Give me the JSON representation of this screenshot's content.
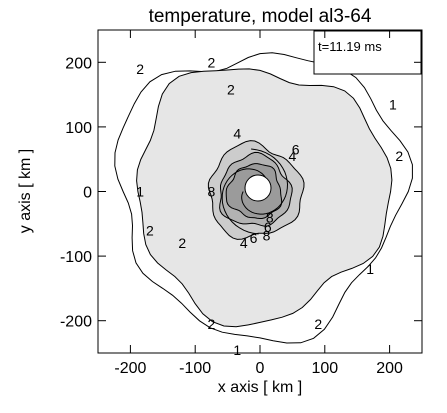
{
  "chart_data": {
    "type": "contour",
    "title": "temperature, model al3-64",
    "time_label": "t=11.19 ms",
    "xlabel": "x axis [ km ]",
    "ylabel": "y axis [ km ]",
    "xlim": [
      -250,
      250
    ],
    "ylim": [
      -250,
      250
    ],
    "xticks": [
      -200,
      -100,
      0,
      100,
      200
    ],
    "yticks": [
      -200,
      -100,
      0,
      100,
      200
    ],
    "grid": false,
    "contour_levels": [
      {
        "level": 1,
        "label": "1",
        "fill": "#ffffff",
        "radius": 220
      },
      {
        "level": 2,
        "label": "2",
        "fill": "#e6e6e6",
        "radius": 195
      },
      {
        "level": 4,
        "label": "4",
        "fill": "#cccccc",
        "radius": 72
      },
      {
        "level": 6,
        "label": "6",
        "fill": "#b2b2b2",
        "radius": 55
      },
      {
        "level": 8,
        "label": "8",
        "fill": "#9b9b9b",
        "radius": 42
      }
    ],
    "contour_labels": [
      {
        "text": "1",
        "x": -185,
        "y": 0
      },
      {
        "text": "1",
        "x": 170,
        "y": -120
      },
      {
        "text": "1",
        "x": 205,
        "y": 135
      },
      {
        "text": "1",
        "x": -35,
        "y": -245
      },
      {
        "text": "2",
        "x": -75,
        "y": 200
      },
      {
        "text": "2",
        "x": -45,
        "y": 158
      },
      {
        "text": "2",
        "x": -185,
        "y": 190
      },
      {
        "text": "2",
        "x": -170,
        "y": -60
      },
      {
        "text": "2",
        "x": -120,
        "y": -80
      },
      {
        "text": "2",
        "x": 215,
        "y": 55
      },
      {
        "text": "2",
        "x": 90,
        "y": -205
      },
      {
        "text": "2",
        "x": -75,
        "y": -205
      },
      {
        "text": "4",
        "x": -35,
        "y": 90
      },
      {
        "text": "4",
        "x": 50,
        "y": 55
      },
      {
        "text": "4",
        "x": -25,
        "y": -80
      },
      {
        "text": "6",
        "x": 55,
        "y": 65
      },
      {
        "text": "6",
        "x": 12,
        "y": -55
      },
      {
        "text": "6",
        "x": -10,
        "y": -72
      },
      {
        "text": "8",
        "x": -75,
        "y": 0
      },
      {
        "text": "8",
        "x": 10,
        "y": -68
      },
      {
        "text": "8",
        "x": 15,
        "y": -40
      }
    ]
  }
}
